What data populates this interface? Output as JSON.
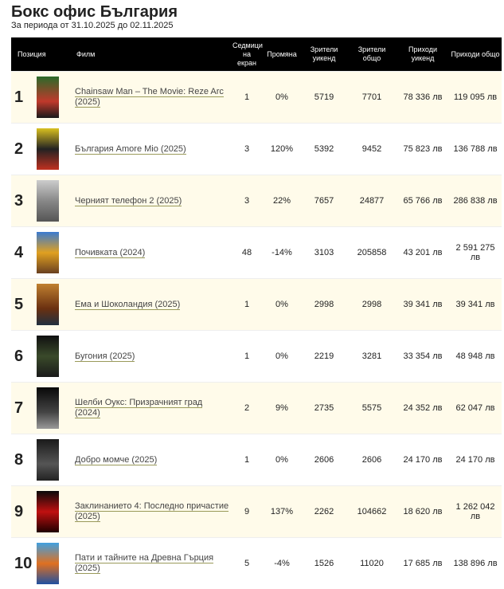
{
  "header": {
    "title": "Бокс офис България",
    "subtitle": "За периода от 31.10.2025 до 02.11.2025"
  },
  "table": {
    "columns": [
      "Позиция",
      "Филм",
      "Седмици на екран",
      "Промяна",
      "Зрители уикенд",
      "Зрители общо",
      "Приходи уикенд",
      "Приходи общо"
    ],
    "rows": [
      [
        "1",
        "Chainsaw Man – The Movie: Reze Arc (2025)",
        "1",
        "0%",
        "5719",
        "7701",
        "78 336 лв",
        "119 095 лв"
      ],
      [
        "2",
        "България Amore Mio (2025)",
        "3",
        "120%",
        "5392",
        "9452",
        "75 823 лв",
        "136 788 лв"
      ],
      [
        "3",
        "Черният телефон 2 (2025)",
        "3",
        "22%",
        "7657",
        "24877",
        "65 766 лв",
        "286 838 лв"
      ],
      [
        "4",
        "Почивката (2024)",
        "48",
        "-14%",
        "3103",
        "205858",
        "43 201 лв",
        "2 591 275 лв"
      ],
      [
        "5",
        "Ема и Шоколандия (2025)",
        "1",
        "0%",
        "2998",
        "2998",
        "39 341 лв",
        "39 341 лв"
      ],
      [
        "6",
        "Бугония (2025)",
        "1",
        "0%",
        "2219",
        "3281",
        "33 354 лв",
        "48 948 лв"
      ],
      [
        "7",
        "Шелби Оукс: Призрачният град (2024)",
        "2",
        "9%",
        "2735",
        "5575",
        "24 352 лв",
        "62 047 лв"
      ],
      [
        "8",
        "Добро момче (2025)",
        "1",
        "0%",
        "2606",
        "2606",
        "24 170 лв",
        "24 170 лв"
      ],
      [
        "9",
        "Заклинанието 4: Последно причастие (2025)",
        "9",
        "137%",
        "2262",
        "104662",
        "18 620 лв",
        "1 262 042 лв"
      ],
      [
        "10",
        "Пати и тайните на Древна Гърция (2025)",
        "5",
        "-4%",
        "1526",
        "11020",
        "17 685 лв",
        "138 896 лв"
      ]
    ]
  }
}
